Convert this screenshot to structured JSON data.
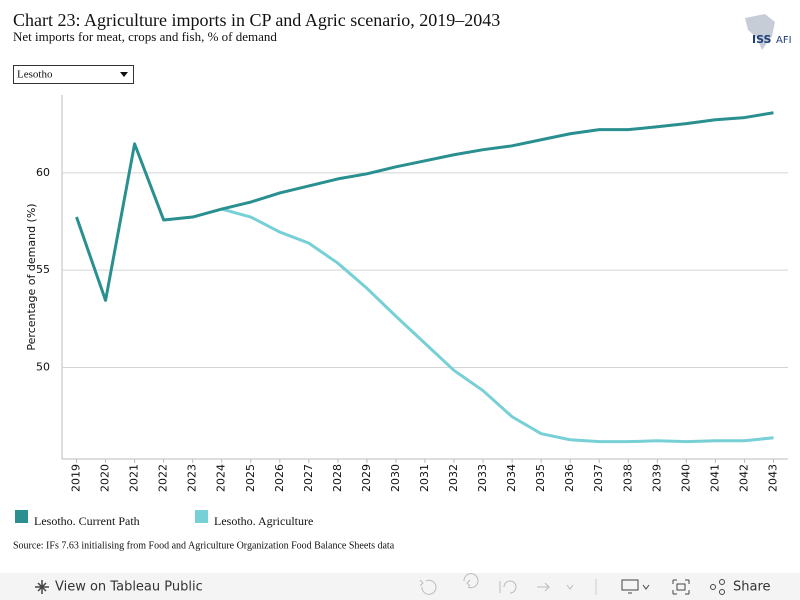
{
  "chart_data": {
    "type": "line",
    "title": "Chart 23: Agriculture imports in CP and Agric scenario, 2019–2043",
    "subtitle": "Net imports for meat, crops and fish, % of demand",
    "y_label": "Percentage of demand (%)",
    "categories": [
      "2019",
      "2020",
      "2021",
      "2022",
      "2023",
      "2024",
      "2025",
      "2026",
      "2027",
      "2028",
      "2029",
      "2030",
      "2031",
      "2032",
      "2033",
      "2034",
      "2035",
      "2036",
      "2037",
      "2038",
      "2039",
      "2040",
      "2041",
      "2042",
      "2043"
    ],
    "series": [
      {
        "name": "Lesotho. Current Path",
        "color": "#2a8f8f",
        "values": [
          57.73,
          53.45,
          61.49,
          57.58,
          57.73,
          58.14,
          58.5,
          58.97,
          59.33,
          59.69,
          59.95,
          60.31,
          60.62,
          60.93,
          61.19,
          61.39,
          61.7,
          62.01,
          62.22,
          62.22,
          62.37,
          62.53,
          62.73,
          62.84,
          63.09
        ]
      },
      {
        "name": "Lesotho. Agriculture",
        "color": "#76d0d5",
        "values": [
          null,
          null,
          null,
          null,
          null,
          58.14,
          57.73,
          56.96,
          56.39,
          55.36,
          54.07,
          52.63,
          51.24,
          49.85,
          48.81,
          47.47,
          46.6,
          46.29,
          46.19,
          46.19,
          46.24,
          46.19,
          46.24,
          46.24,
          46.39
        ]
      }
    ],
    "ylim": [
      45.3,
      64
    ],
    "yticks": [
      50,
      55,
      60
    ],
    "grid": true,
    "legend": "bottom-left"
  },
  "filter": "Lesotho",
  "logo": [
    "ISS",
    "AFI"
  ],
  "source": "Source: IFs 7.63 initialising from Food and Agriculture Organization Food Balance Sheets data",
  "toolbar": {
    "view": "View on Tableau Public",
    "share": "Share"
  }
}
